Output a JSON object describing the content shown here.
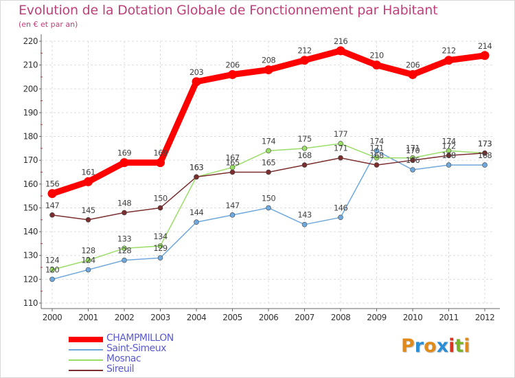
{
  "header": {
    "title": "Evolution de la Dotation Globale de Fonctionnement par Habitant",
    "subtitle": "(en € et par an)"
  },
  "chart_data": {
    "type": "line",
    "title": "Evolution de la Dotation Globale de Fonctionnement par Habitant",
    "subtitle": "(en € et par an)",
    "xlabel": "",
    "ylabel": "",
    "categories": [
      "2000",
      "2001",
      "2002",
      "2003",
      "2004",
      "2005",
      "2006",
      "2007",
      "2008",
      "2009",
      "2010",
      "2011",
      "2012"
    ],
    "ylim": [
      110,
      220
    ],
    "yticks": [
      110,
      120,
      130,
      140,
      150,
      160,
      170,
      180,
      190,
      200,
      210,
      220
    ],
    "grid": true,
    "series": [
      {
        "name": "CHAMPMILLON",
        "color": "#ff0000",
        "values": [
          156,
          161,
          169,
          169,
          203,
          206,
          208,
          212,
          216,
          210,
          206,
          212,
          214
        ]
      },
      {
        "name": "Saint-Simeux",
        "color": "#6fa8dc",
        "values": [
          120,
          124,
          128,
          129,
          144,
          147,
          150,
          143,
          146,
          174,
          166,
          168,
          168
        ]
      },
      {
        "name": "Mosnac",
        "color": "#99dd66",
        "values": [
          124,
          128,
          133,
          134,
          163,
          167,
          174,
          175,
          177,
          171,
          171,
          174,
          173
        ]
      },
      {
        "name": "Sireuil",
        "color": "#7a2e2e",
        "values": [
          147,
          145,
          148,
          150,
          163,
          165,
          165,
          168,
          171,
          168,
          170,
          172,
          173
        ]
      }
    ]
  },
  "legend": {
    "items": [
      {
        "label": "CHAMPMILLON",
        "color": "#ff0000"
      },
      {
        "label": "Saint-Simeux",
        "color": "#6fa8dc"
      },
      {
        "label": "Mosnac",
        "color": "#99dd66"
      },
      {
        "label": "Sireuil",
        "color": "#7a2e2e"
      }
    ]
  },
  "logo": {
    "letters": [
      "P",
      "r",
      "o",
      "x",
      "i",
      "t",
      "i"
    ],
    "colors": [
      "#e08a1a",
      "#2a8ed6",
      "#e08a1a",
      "#2a8ed6",
      "#e0301e",
      "#7ab32a",
      "#e08a1a"
    ]
  }
}
